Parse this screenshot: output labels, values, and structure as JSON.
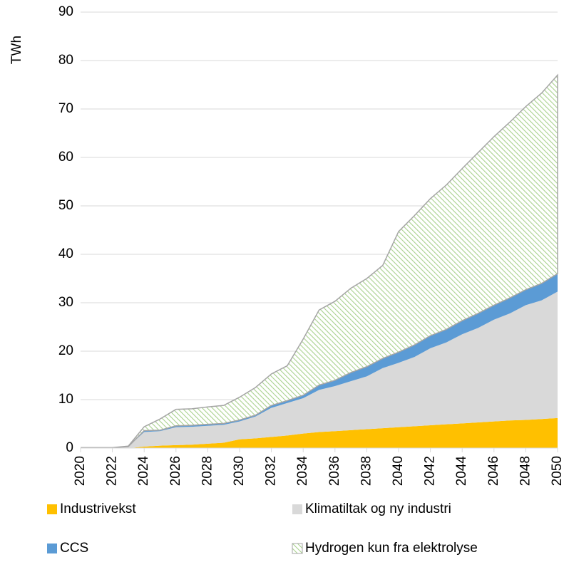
{
  "chart_data": {
    "type": "stacked-area",
    "y_label": "TWh",
    "x": [
      2020,
      2021,
      2022,
      2023,
      2024,
      2025,
      2026,
      2027,
      2028,
      2029,
      2030,
      2031,
      2032,
      2033,
      2034,
      2035,
      2036,
      2037,
      2038,
      2039,
      2040,
      2041,
      2042,
      2043,
      2044,
      2045,
      2046,
      2047,
      2048,
      2049,
      2050
    ],
    "xlim": [
      2020,
      2050
    ],
    "xticks": [
      2020,
      2022,
      2024,
      2026,
      2028,
      2030,
      2032,
      2034,
      2036,
      2038,
      2040,
      2042,
      2044,
      2046,
      2048,
      2050
    ],
    "ylim": [
      0,
      90
    ],
    "yticks": [
      0,
      10,
      20,
      30,
      40,
      50,
      60,
      70,
      80,
      90
    ],
    "grid": true,
    "series": [
      {
        "name": "Industrivekst",
        "color": "#ffc000",
        "values": [
          0,
          0,
          0,
          0,
          0.3,
          0.5,
          0.6,
          0.7,
          0.9,
          1.1,
          1.8,
          2.0,
          2.3,
          2.6,
          3.0,
          3.3,
          3.5,
          3.7,
          3.9,
          4.1,
          4.3,
          4.5,
          4.7,
          4.9,
          5.1,
          5.3,
          5.5,
          5.7,
          5.8,
          6.0,
          6.2
        ]
      },
      {
        "name": "Klimatiltak og ny industri",
        "color": "#d9d9d9",
        "values": [
          0.1,
          0.1,
          0.1,
          0.3,
          3.0,
          3.0,
          3.7,
          3.7,
          3.7,
          3.7,
          3.7,
          4.5,
          6.0,
          6.7,
          7.3,
          8.7,
          9.3,
          10.1,
          10.9,
          12.4,
          13.3,
          14.3,
          15.9,
          16.9,
          18.4,
          19.5,
          21.0,
          22.1,
          23.7,
          24.5,
          26.1
        ]
      },
      {
        "name": "CCS",
        "color": "#5b9bd5",
        "values": [
          0,
          0,
          0,
          0,
          0.3,
          0.2,
          0.3,
          0.3,
          0.3,
          0.3,
          0.3,
          0.3,
          0.5,
          0.5,
          0.6,
          1.0,
          1.2,
          1.8,
          2.0,
          2.0,
          2.2,
          2.5,
          2.6,
          2.7,
          2.8,
          3.0,
          3.0,
          3.2,
          3.2,
          3.5,
          3.7
        ]
      },
      {
        "name": "Hydrogen kun fra elektrolyse",
        "color": "#a9d18e",
        "pattern": "diagonal",
        "values": [
          0,
          0,
          0,
          0.1,
          0.8,
          2.3,
          3.4,
          3.4,
          3.6,
          3.7,
          4.7,
          5.7,
          6.5,
          7.2,
          11.6,
          15.5,
          16.3,
          17.4,
          18.2,
          19.2,
          24.9,
          26.7,
          28.3,
          29.8,
          31.4,
          33.2,
          34.8,
          36.3,
          37.8,
          39.3,
          41.0
        ]
      }
    ]
  }
}
